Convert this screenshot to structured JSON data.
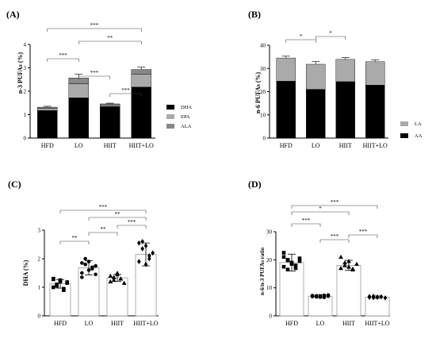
{
  "panels": {
    "A": {
      "label": "(A)",
      "ylabel": "n-3 PUFAs (%)"
    },
    "B": {
      "label": "(B)",
      "ylabel": "n-6 PUFAs (%)"
    },
    "C": {
      "label": "(C)",
      "ylabel": "DHA (%)"
    },
    "D": {
      "label": "(D)",
      "ylabel": "n-6/n-3 PUFAs ratio"
    }
  },
  "colors": {
    "black": "#000000",
    "gray": "#aaaaaa",
    "dark_gray": "#888888",
    "white": "#ffffff"
  },
  "chart_data": [
    {
      "panel": "A",
      "type": "bar",
      "stacked": true,
      "title": "",
      "ylabel": "n-3 PUFAs (%)",
      "ylim": [
        0,
        4
      ],
      "yticks": [
        "0",
        "1",
        "2",
        "3",
        "4"
      ],
      "categories": [
        "HFD",
        "LO",
        "HIIT",
        "HIIT+LO"
      ],
      "series": [
        {
          "name": "DHA",
          "color": "#000000",
          "values": [
            1.18,
            1.72,
            1.35,
            2.18
          ],
          "errors": [
            0.08,
            0.24,
            0.07,
            0.35
          ]
        },
        {
          "name": "EPA",
          "color": "#aaaaaa",
          "values": [
            0.08,
            0.6,
            0.06,
            0.55
          ],
          "errors": [
            0.05,
            0.1,
            0.04,
            0.1
          ]
        },
        {
          "name": "ALA",
          "color": "#888888",
          "values": [
            0.06,
            0.25,
            0.05,
            0.2
          ],
          "errors": [
            0.04,
            0.16,
            0.03,
            0.1
          ]
        }
      ],
      "legend_position": "right",
      "significance": [
        {
          "from": 0,
          "to": 3,
          "label": "***"
        },
        {
          "from": 1,
          "to": 3,
          "label": "**"
        },
        {
          "from": 0,
          "to": 1,
          "label": "***"
        },
        {
          "from": 1,
          "to": 2,
          "label": "***"
        },
        {
          "from": 2,
          "to": 3,
          "label": "***"
        }
      ]
    },
    {
      "panel": "B",
      "type": "bar",
      "stacked": true,
      "title": "",
      "ylabel": "n-6 PUFAs (%)",
      "ylim": [
        0,
        40
      ],
      "yticks": [
        "0",
        "10",
        "20",
        "30",
        "40"
      ],
      "categories": [
        "HFD",
        "LO",
        "HIIT",
        "HIIT+LO"
      ],
      "series": [
        {
          "name": "AA",
          "color": "#000000",
          "values": [
            24.5,
            21.0,
            24.3,
            22.8
          ],
          "errors": [
            2.6,
            3.6,
            2.4,
            0.8
          ]
        },
        {
          "name": "LA",
          "color": "#aaaaaa",
          "values": [
            10.0,
            10.8,
            9.6,
            10.1
          ],
          "errors": [
            0.8,
            1.2,
            0.8,
            0.8
          ]
        }
      ],
      "legend_position": "right",
      "significance": [
        {
          "from": 0,
          "to": 1,
          "label": "*"
        },
        {
          "from": 1,
          "to": 2,
          "label": "*"
        }
      ]
    },
    {
      "panel": "C",
      "type": "bar",
      "subtype": "bar-with-points",
      "title": "",
      "ylabel": "DHA (%)",
      "ylim": [
        0,
        3
      ],
      "yticks": [
        "0",
        "1",
        "2",
        "3"
      ],
      "categories": [
        "HFD",
        "LO",
        "HIIT",
        "HIIT+LO"
      ],
      "values": [
        1.12,
        1.68,
        1.33,
        2.15
      ],
      "errors": [
        0.15,
        0.25,
        0.12,
        0.4
      ],
      "markers": [
        "square",
        "circle",
        "triangle",
        "diamond"
      ],
      "points": [
        [
          1.0,
          1.1,
          1.25,
          0.9,
          1.15,
          1.3,
          1.05,
          1.2,
          0.95,
          1.18,
          1.28
        ],
        [
          1.5,
          1.8,
          1.9,
          1.7,
          1.45,
          1.85,
          2.0,
          1.6,
          1.65,
          1.75,
          1.35
        ],
        [
          1.2,
          1.35,
          1.45,
          1.3,
          1.15,
          1.4,
          1.25,
          1.5,
          1.3
        ],
        [
          2.55,
          2.6,
          1.8,
          2.0,
          2.2,
          1.9,
          2.35,
          2.45,
          2.1
        ]
      ],
      "significance": [
        {
          "from": 0,
          "to": 3,
          "label": "***"
        },
        {
          "from": 1,
          "to": 3,
          "label": "**"
        },
        {
          "from": 0,
          "to": 1,
          "label": "**"
        },
        {
          "from": 1,
          "to": 2,
          "label": "**"
        },
        {
          "from": 2,
          "to": 3,
          "label": "***"
        }
      ]
    },
    {
      "panel": "D",
      "type": "bar",
      "subtype": "bar-with-points",
      "title": "",
      "ylabel": "n-6/n-3 PUFAs ratio",
      "ylim": [
        0,
        30
      ],
      "yticks": [
        "0",
        "10",
        "20",
        "30"
      ],
      "categories": [
        "HFD",
        "LO",
        "HIIT",
        "HIIT+LO"
      ],
      "values": [
        19.0,
        7.0,
        18.0,
        6.7
      ],
      "errors": [
        3.0,
        0.6,
        1.8,
        0.4
      ],
      "markers": [
        "square",
        "circle",
        "triangle",
        "diamond"
      ],
      "points": [
        [
          22.5,
          20.0,
          18.5,
          17.0,
          19.5,
          21.0,
          16.5,
          19.0,
          18.0,
          20.5,
          17.5,
          19.8
        ],
        [
          7.2,
          6.8,
          7.0,
          6.6,
          7.4,
          6.9,
          7.1,
          6.7,
          7.3,
          7.0
        ],
        [
          21.0,
          19.0,
          17.5,
          16.5,
          18.5,
          17.0,
          18.0,
          19.5,
          16.8
        ],
        [
          6.9,
          6.5,
          6.7,
          6.8,
          6.4,
          6.6,
          7.0,
          6.6
        ]
      ],
      "significance": [
        {
          "from": 0,
          "to": 3,
          "label": "***"
        },
        {
          "from": 0,
          "to": 2,
          "label": "*"
        },
        {
          "from": 0,
          "to": 1,
          "label": "***"
        },
        {
          "from": 1,
          "to": 2,
          "label": "***"
        },
        {
          "from": 2,
          "to": 3,
          "label": "***"
        }
      ]
    }
  ]
}
